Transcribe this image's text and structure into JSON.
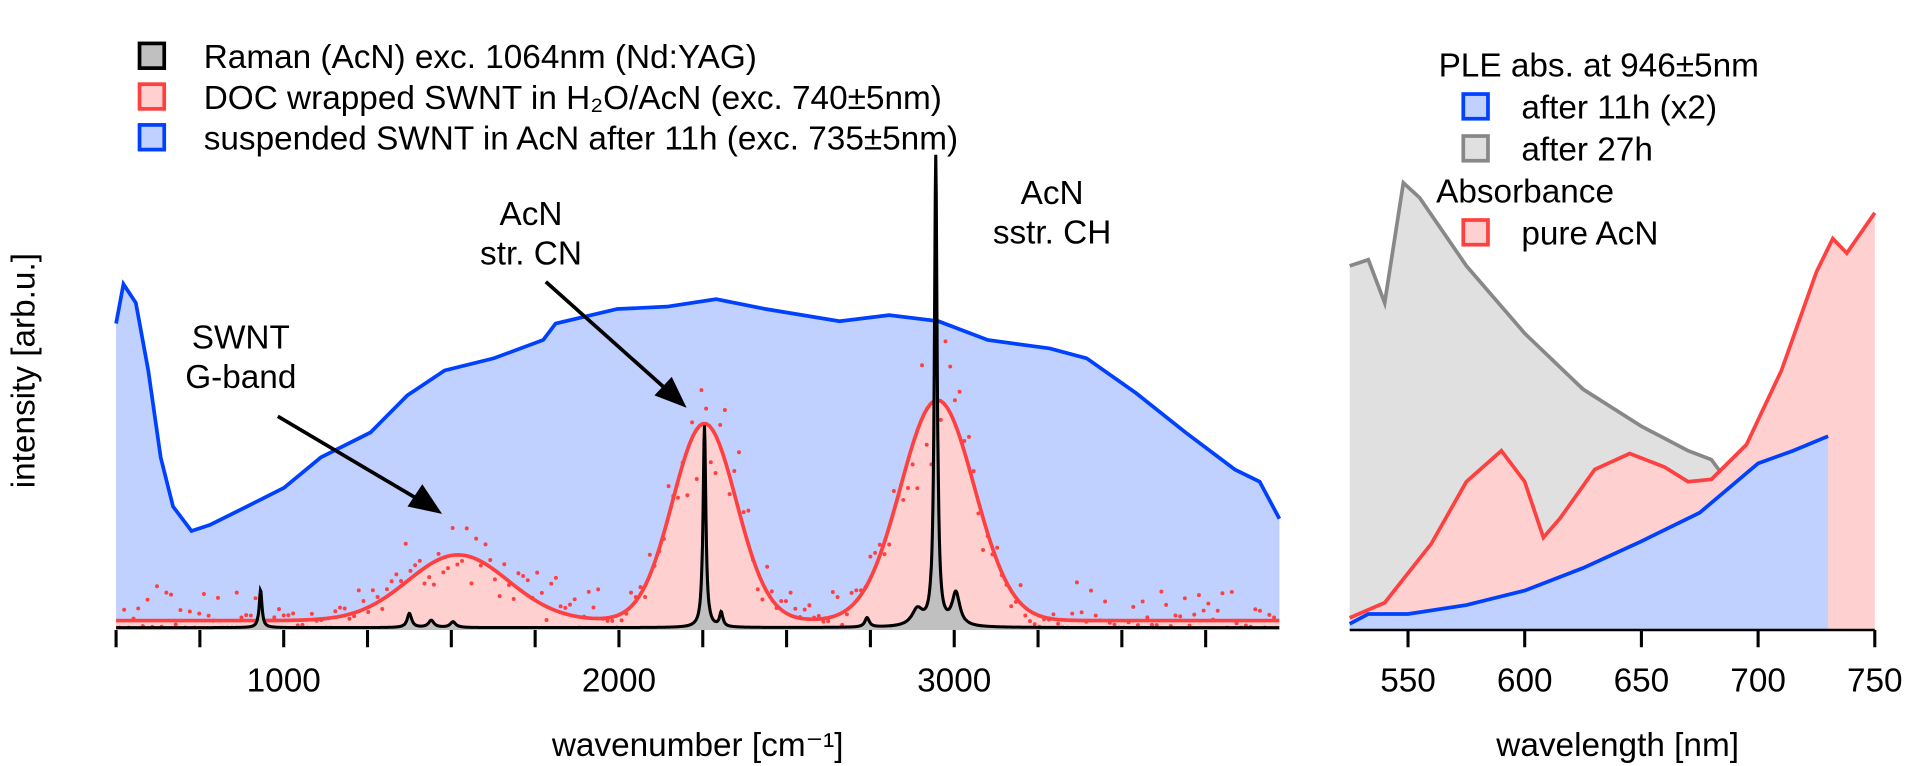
{
  "chart_data": [
    {
      "type": "line",
      "title": "",
      "xlabel": "wavenumber [cm⁻¹]",
      "ylabel": "intensity [arb.u.]",
      "xlim": [
        500,
        3970
      ],
      "ylim": [
        0,
        1
      ],
      "x_ticks": [
        1000,
        2000,
        3000
      ],
      "minor_tick_step": 250,
      "grid": false,
      "legend_position": "top-left",
      "legend": [
        {
          "label": "Raman (AcN) exc. 1064nm (Nd:YAG)",
          "stroke": "#000000",
          "fill": "#c0c0c0"
        },
        {
          "label": "DOC wrapped SWNT in H₂O/AcN (exc. 740±5nm)",
          "stroke": "#ff4040",
          "fill": "#ffd0d0"
        },
        {
          "label": "suspended SWNT in AcN after 11h (exc. 735±5nm)",
          "stroke": "#0040ff",
          "fill": "#c0d0ff"
        }
      ],
      "series": [
        {
          "name": "suspended SWNT in AcN after 11h (exc. 735±5nm)",
          "x": [
            500,
            522,
            559,
            596,
            633,
            670,
            725,
            780,
            890,
            1001,
            1111,
            1259,
            1369,
            1480,
            1627,
            1774,
            1811,
            1995,
            2143,
            2290,
            2437,
            2658,
            2806,
            2953,
            3100,
            3285,
            3395,
            3542,
            3690,
            3837,
            3911,
            3970
          ],
          "y": [
            0.653,
            0.737,
            0.697,
            0.553,
            0.368,
            0.263,
            0.211,
            0.224,
            0.263,
            0.303,
            0.368,
            0.421,
            0.5,
            0.553,
            0.579,
            0.618,
            0.653,
            0.684,
            0.689,
            0.705,
            0.684,
            0.658,
            0.671,
            0.658,
            0.618,
            0.6,
            0.579,
            0.505,
            0.421,
            0.342,
            0.316,
            0.237
          ]
        },
        {
          "name": "DOC wrapped SWNT in H₂O/AcN (exc. 740±5nm) fit",
          "baseline": 0.02,
          "gaussian_peaks": [
            {
              "center": 1520,
              "height": 0.14,
              "sigma": 150
            },
            {
              "center": 2255,
              "height": 0.42,
              "sigma": 95
            },
            {
              "center": 2950,
              "height": 0.47,
              "sigma": 110
            }
          ]
        },
        {
          "name": "Raman (AcN) exc. 1064nm (Nd:YAG)",
          "baseline": 0.005,
          "peaks": [
            {
              "center": 931,
              "height": 0.08,
              "width": 5
            },
            {
              "center": 1375,
              "height": 0.03,
              "width": 8
            },
            {
              "center": 1440,
              "height": 0.015,
              "width": 10
            },
            {
              "center": 1505,
              "height": 0.012,
              "width": 10
            },
            {
              "center": 2255,
              "height": 0.43,
              "width": 5
            },
            {
              "center": 2305,
              "height": 0.03,
              "width": 6
            },
            {
              "center": 2740,
              "height": 0.02,
              "width": 8
            },
            {
              "center": 2890,
              "height": 0.035,
              "width": 20
            },
            {
              "center": 2945,
              "height": 1.0,
              "width": 5
            },
            {
              "center": 3005,
              "height": 0.07,
              "width": 14
            }
          ]
        }
      ],
      "annotations": [
        {
          "lines": [
            "SWNT",
            "G-band"
          ],
          "arrow_to_x": 1470
        },
        {
          "lines": [
            "AcN",
            "str. CN"
          ],
          "arrow_to_x": 2225
        },
        {
          "lines": [
            "AcN",
            "sstr. CH"
          ]
        }
      ]
    },
    {
      "type": "area",
      "xlabel": "wavelength [nm]",
      "ylabel": "",
      "xlim": [
        525,
        750
      ],
      "ylim": [
        0,
        1
      ],
      "x_ticks": [
        550,
        600,
        650,
        700,
        750
      ],
      "grid": false,
      "legend_position": "top-right",
      "legend_groups": [
        {
          "title": "PLE abs. at 946±5nm",
          "items": [
            {
              "label": "after 11h (x2)",
              "stroke": "#0040ff",
              "fill": "#c0d0ff"
            },
            {
              "label": "after 27h",
              "stroke": "#888888",
              "fill": "#e0e0e0"
            }
          ]
        },
        {
          "title": "Absorbance",
          "items": [
            {
              "label": "pure AcN",
              "stroke": "#ff4040",
              "fill": "#ffd0d0"
            }
          ]
        }
      ],
      "series": [
        {
          "name": "after 27h",
          "x": [
            525,
            533,
            540,
            548,
            555,
            575,
            600,
            625,
            650,
            660,
            670,
            680,
            685
          ],
          "y": [
            0.776,
            0.789,
            0.697,
            0.953,
            0.921,
            0.776,
            0.632,
            0.513,
            0.434,
            0.408,
            0.382,
            0.363,
            0.329
          ]
        },
        {
          "name": "pure AcN",
          "x": [
            525,
            540,
            560,
            575,
            590,
            600,
            608,
            615,
            630,
            645,
            660,
            670,
            680,
            695,
            710,
            725,
            732,
            738,
            750
          ],
          "y": [
            0.026,
            0.058,
            0.184,
            0.316,
            0.382,
            0.316,
            0.197,
            0.237,
            0.342,
            0.376,
            0.347,
            0.316,
            0.321,
            0.395,
            0.553,
            0.763,
            0.834,
            0.803,
            0.889
          ]
        },
        {
          "name": "after 11h (x2)",
          "x": [
            525,
            533,
            550,
            575,
            600,
            625,
            650,
            675,
            700,
            715,
            730
          ],
          "y": [
            0.013,
            0.034,
            0.034,
            0.053,
            0.084,
            0.132,
            0.189,
            0.25,
            0.355,
            0.382,
            0.413
          ]
        }
      ]
    }
  ]
}
